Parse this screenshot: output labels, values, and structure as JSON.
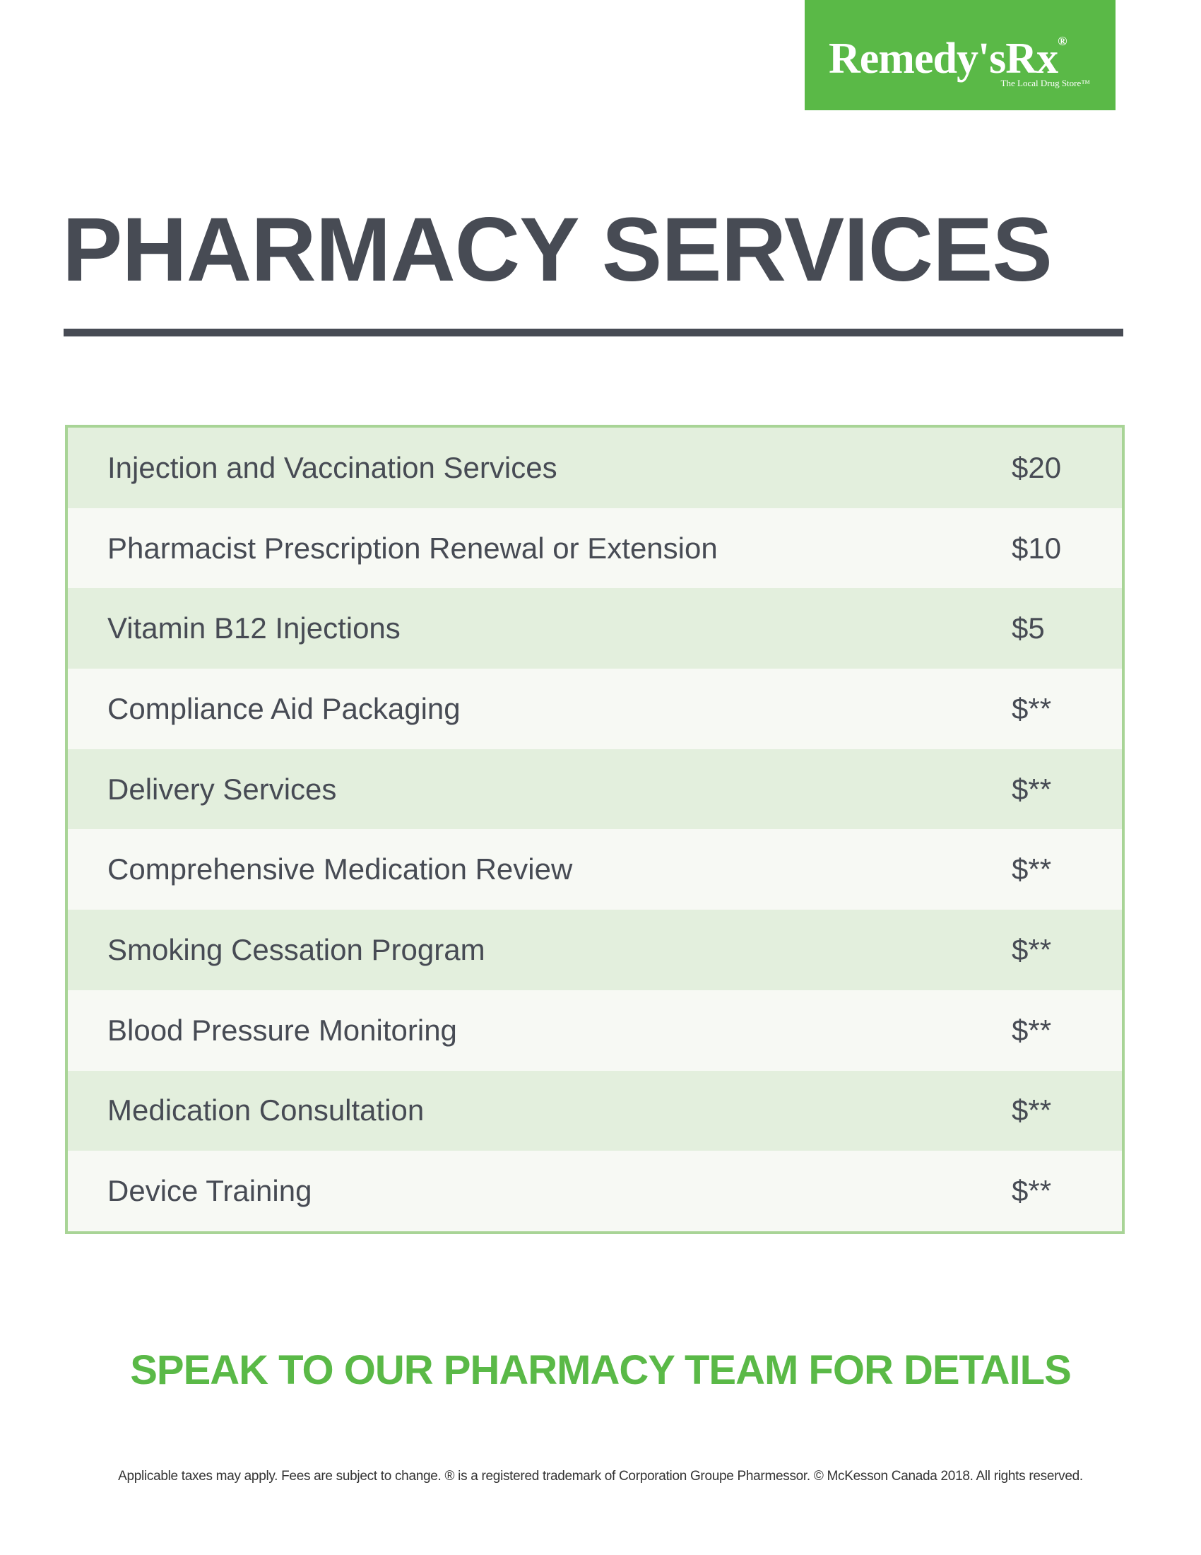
{
  "logo": {
    "name": "Remedy'sRx",
    "mark": "®",
    "tagline": "The Local Drug Store™"
  },
  "header": {
    "title": "PHARMACY SERVICES"
  },
  "table": {
    "rows": [
      [
        "Injection and Vaccination Services",
        "$20"
      ],
      [
        "Pharmacist Prescription Renewal or Extension",
        "$10"
      ],
      [
        "Vitamin B12 Injections",
        "$5"
      ],
      [
        "Compliance Aid Packaging",
        "$**"
      ],
      [
        "Delivery Services",
        "$**"
      ],
      [
        "Comprehensive Medication Review",
        "$**"
      ],
      [
        "Smoking Cessation Program",
        "$**"
      ],
      [
        "Blood Pressure Monitoring",
        "$**"
      ],
      [
        "Medication Consultation",
        "$**"
      ],
      [
        "Device Training",
        "$**"
      ]
    ]
  },
  "callout": "SPEAK TO OUR PHARMACY TEAM FOR DETAILS",
  "footer": "Applicable taxes may apply. Fees are subject to change. ® is a registered trademark of Corporation Groupe Pharmessor. © McKesson Canada 2018. All rights reserved."
}
